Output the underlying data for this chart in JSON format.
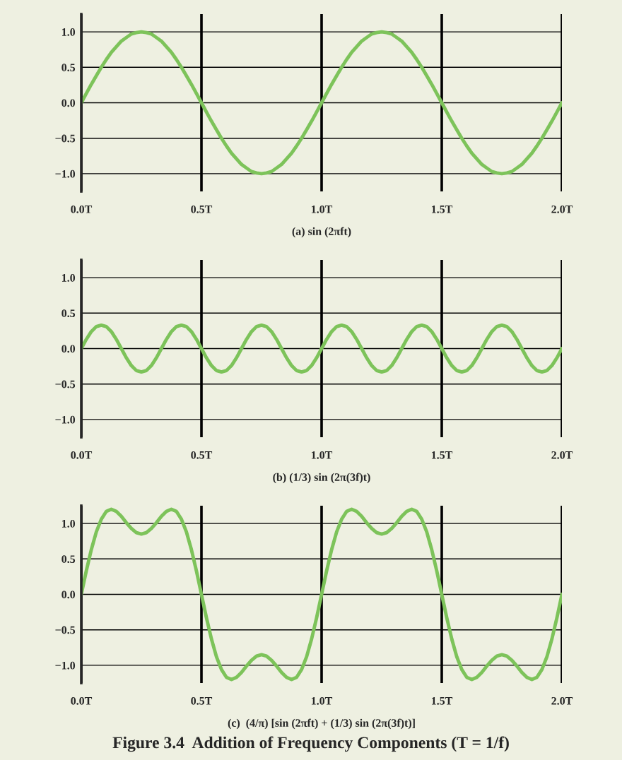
{
  "chart_data": [
    {
      "type": "line",
      "xlabel": "(a) sin (2πft)",
      "x": [
        0,
        0.0208,
        0.0417,
        0.0625,
        0.0833,
        0.1042,
        0.125,
        0.1458,
        0.1667,
        0.1875,
        0.2083,
        0.2292,
        0.25,
        0.2708,
        0.2917,
        0.3125,
        0.3333,
        0.3542,
        0.375,
        0.3958,
        0.4167,
        0.4375,
        0.4583,
        0.4792,
        0.5,
        0.5208,
        0.5417,
        0.5625,
        0.5833,
        0.6042,
        0.625,
        0.6458,
        0.6667,
        0.6875,
        0.7083,
        0.7292,
        0.75,
        0.7708,
        0.7917,
        0.8125,
        0.8333,
        0.8542,
        0.875,
        0.8958,
        0.9167,
        0.9375,
        0.9583,
        0.9792,
        1,
        1.0208,
        1.0417,
        1.0625,
        1.0833,
        1.1042,
        1.125,
        1.1458,
        1.1667,
        1.1875,
        1.2083,
        1.2292,
        1.25,
        1.2708,
        1.2917,
        1.3125,
        1.3333,
        1.3542,
        1.375,
        1.3958,
        1.4167,
        1.4375,
        1.4583,
        1.4792,
        1.5,
        1.5208,
        1.5417,
        1.5625,
        1.5833,
        1.6042,
        1.625,
        1.6458,
        1.6667,
        1.6875,
        1.7083,
        1.7292,
        1.75,
        1.7708,
        1.7917,
        1.8125,
        1.8333,
        1.8542,
        1.875,
        1.8958,
        1.9167,
        1.9375,
        1.9583,
        1.9792,
        2
      ],
      "series": [
        {
          "color": "#7dc35a",
          "values": [
            0,
            0.13,
            0.26,
            0.38,
            0.5,
            0.61,
            0.71,
            0.79,
            0.87,
            0.92,
            0.97,
            0.99,
            1,
            0.99,
            0.97,
            0.92,
            0.87,
            0.79,
            0.71,
            0.61,
            0.5,
            0.38,
            0.26,
            0.13,
            0,
            -0.13,
            -0.26,
            -0.38,
            -0.5,
            -0.61,
            -0.71,
            -0.79,
            -0.87,
            -0.92,
            -0.97,
            -0.99,
            -1,
            -0.99,
            -0.97,
            -0.92,
            -0.87,
            -0.79,
            -0.71,
            -0.61,
            -0.5,
            -0.38,
            -0.26,
            -0.13,
            0,
            0.13,
            0.26,
            0.38,
            0.5,
            0.61,
            0.71,
            0.79,
            0.87,
            0.92,
            0.97,
            0.99,
            1,
            0.99,
            0.97,
            0.92,
            0.87,
            0.79,
            0.71,
            0.61,
            0.5,
            0.38,
            0.26,
            0.13,
            0,
            -0.13,
            -0.26,
            -0.38,
            -0.5,
            -0.61,
            -0.71,
            -0.79,
            -0.87,
            -0.92,
            -0.97,
            -0.99,
            -1,
            -0.99,
            -0.97,
            -0.92,
            -0.87,
            -0.79,
            -0.71,
            -0.61,
            -0.5,
            -0.38,
            -0.26,
            -0.13,
            0
          ]
        }
      ],
      "xlim": [
        0,
        2
      ],
      "ylim": [
        -1.25,
        1.25
      ],
      "xticks": [
        {
          "value": 0,
          "label": "0.0T"
        },
        {
          "value": 0.5,
          "label": "0.5T"
        },
        {
          "value": 1,
          "label": "1.0T"
        },
        {
          "value": 1.5,
          "label": "1.5T"
        },
        {
          "value": 2,
          "label": "2.0T"
        }
      ],
      "yticks": [
        {
          "value": 1,
          "label": "1.0"
        },
        {
          "value": 0.5,
          "label": "0.5"
        },
        {
          "value": 0,
          "label": "0.0"
        },
        {
          "value": -0.5,
          "label": "−0.5"
        },
        {
          "value": -1,
          "label": "−1.0"
        }
      ],
      "grid": true
    },
    {
      "type": "line",
      "xlabel": "(b) (1/3) sin (2π(3f)t)",
      "x": [
        0,
        0.0208,
        0.0417,
        0.0625,
        0.0833,
        0.1042,
        0.125,
        0.1458,
        0.1667,
        0.1875,
        0.2083,
        0.2292,
        0.25,
        0.2708,
        0.2917,
        0.3125,
        0.3333,
        0.3542,
        0.375,
        0.3958,
        0.4167,
        0.4375,
        0.4583,
        0.4792,
        0.5,
        0.5208,
        0.5417,
        0.5625,
        0.5833,
        0.6042,
        0.625,
        0.6458,
        0.6667,
        0.6875,
        0.7083,
        0.7292,
        0.75,
        0.7708,
        0.7917,
        0.8125,
        0.8333,
        0.8542,
        0.875,
        0.8958,
        0.9167,
        0.9375,
        0.9583,
        0.9792,
        1,
        1.0208,
        1.0417,
        1.0625,
        1.0833,
        1.1042,
        1.125,
        1.1458,
        1.1667,
        1.1875,
        1.2083,
        1.2292,
        1.25,
        1.2708,
        1.2917,
        1.3125,
        1.3333,
        1.3542,
        1.375,
        1.3958,
        1.4167,
        1.4375,
        1.4583,
        1.4792,
        1.5,
        1.5208,
        1.5417,
        1.5625,
        1.5833,
        1.6042,
        1.625,
        1.6458,
        1.6667,
        1.6875,
        1.7083,
        1.7292,
        1.75,
        1.7708,
        1.7917,
        1.8125,
        1.8333,
        1.8542,
        1.875,
        1.8958,
        1.9167,
        1.9375,
        1.9583,
        1.9792,
        2
      ],
      "series": [
        {
          "color": "#7dc35a",
          "values": [
            0,
            0.13,
            0.24,
            0.31,
            0.33,
            0.31,
            0.24,
            0.13,
            0,
            -0.13,
            -0.24,
            -0.31,
            -0.33,
            -0.31,
            -0.24,
            -0.13,
            0,
            0.13,
            0.24,
            0.31,
            0.33,
            0.31,
            0.24,
            0.13,
            0,
            -0.13,
            -0.24,
            -0.31,
            -0.33,
            -0.31,
            -0.24,
            -0.13,
            0,
            0.13,
            0.24,
            0.31,
            0.33,
            0.31,
            0.24,
            0.13,
            0,
            -0.13,
            -0.24,
            -0.31,
            -0.33,
            -0.31,
            -0.24,
            -0.13,
            0,
            0.13,
            0.24,
            0.31,
            0.33,
            0.31,
            0.24,
            0.13,
            0,
            -0.13,
            -0.24,
            -0.31,
            -0.33,
            -0.31,
            -0.24,
            -0.13,
            0,
            0.13,
            0.24,
            0.31,
            0.33,
            0.31,
            0.24,
            0.13,
            0,
            -0.13,
            -0.24,
            -0.31,
            -0.33,
            -0.31,
            -0.24,
            -0.13,
            0,
            0.13,
            0.24,
            0.31,
            0.33,
            0.31,
            0.24,
            0.13,
            0,
            -0.13,
            -0.24,
            -0.31,
            -0.33,
            -0.31,
            -0.24,
            -0.13,
            0
          ]
        }
      ],
      "xlim": [
        0,
        2
      ],
      "ylim": [
        -1.25,
        1.25
      ],
      "xticks": [
        {
          "value": 0,
          "label": "0.0T"
        },
        {
          "value": 0.5,
          "label": "0.5T"
        },
        {
          "value": 1,
          "label": "1.0T"
        },
        {
          "value": 1.5,
          "label": "1.5T"
        },
        {
          "value": 2,
          "label": "2.0T"
        }
      ],
      "yticks": [
        {
          "value": 1,
          "label": "1.0"
        },
        {
          "value": 0.5,
          "label": "0.5"
        },
        {
          "value": 0,
          "label": "0.0"
        },
        {
          "value": -0.5,
          "label": "−0.5"
        },
        {
          "value": -1,
          "label": "−1.0"
        }
      ],
      "grid": true
    },
    {
      "type": "line",
      "xlabel": "(c)  (4/π) [sin (2πft) + (1/3) sin (2π(3f)t)]",
      "annotations": [
        "Figure 3.4  Addition of Frequency Components (T = 1/f)"
      ],
      "x": [
        0,
        0.0208,
        0.0417,
        0.0625,
        0.0833,
        0.1042,
        0.125,
        0.1458,
        0.1667,
        0.1875,
        0.2083,
        0.2292,
        0.25,
        0.2708,
        0.2917,
        0.3125,
        0.3333,
        0.3542,
        0.375,
        0.3958,
        0.4167,
        0.4375,
        0.4583,
        0.4792,
        0.5,
        0.5208,
        0.5417,
        0.5625,
        0.5833,
        0.6042,
        0.625,
        0.6458,
        0.6667,
        0.6875,
        0.7083,
        0.7292,
        0.75,
        0.7708,
        0.7917,
        0.8125,
        0.8333,
        0.8542,
        0.875,
        0.8958,
        0.9167,
        0.9375,
        0.9583,
        0.9792,
        1,
        1.0208,
        1.0417,
        1.0625,
        1.0833,
        1.1042,
        1.125,
        1.1458,
        1.1667,
        1.1875,
        1.2083,
        1.2292,
        1.25,
        1.2708,
        1.2917,
        1.3125,
        1.3333,
        1.3542,
        1.375,
        1.3958,
        1.4167,
        1.4375,
        1.4583,
        1.4792,
        1.5,
        1.5208,
        1.5417,
        1.5625,
        1.5833,
        1.6042,
        1.625,
        1.6458,
        1.6667,
        1.6875,
        1.7083,
        1.7292,
        1.75,
        1.7708,
        1.7917,
        1.8125,
        1.8333,
        1.8542,
        1.875,
        1.8958,
        1.9167,
        1.9375,
        1.9583,
        1.9792,
        2
      ],
      "series": [
        {
          "color": "#7dc35a",
          "values": [
            0,
            0.33,
            0.63,
            0.88,
            1.06,
            1.17,
            1.2,
            1.17,
            1.1,
            1.01,
            0.93,
            0.87,
            0.85,
            0.87,
            0.93,
            1.01,
            1.1,
            1.17,
            1.2,
            1.17,
            1.06,
            0.88,
            0.63,
            0.33,
            0,
            -0.33,
            -0.63,
            -0.88,
            -1.06,
            -1.17,
            -1.2,
            -1.17,
            -1.1,
            -1.01,
            -0.93,
            -0.87,
            -0.85,
            -0.87,
            -0.93,
            -1.01,
            -1.1,
            -1.17,
            -1.2,
            -1.17,
            -1.06,
            -0.88,
            -0.63,
            -0.33,
            0,
            0.33,
            0.63,
            0.88,
            1.06,
            1.17,
            1.2,
            1.17,
            1.1,
            1.01,
            0.93,
            0.87,
            0.85,
            0.87,
            0.93,
            1.01,
            1.1,
            1.17,
            1.2,
            1.17,
            1.06,
            0.88,
            0.63,
            0.33,
            0,
            -0.33,
            -0.63,
            -0.88,
            -1.06,
            -1.17,
            -1.2,
            -1.17,
            -1.1,
            -1.01,
            -0.93,
            -0.87,
            -0.85,
            -0.87,
            -0.93,
            -1.01,
            -1.1,
            -1.17,
            -1.2,
            -1.17,
            -1.06,
            -0.88,
            -0.63,
            -0.33,
            0
          ]
        }
      ],
      "xlim": [
        0,
        2
      ],
      "ylim": [
        -1.25,
        1.25
      ],
      "xticks": [
        {
          "value": 0,
          "label": "0.0T"
        },
        {
          "value": 0.5,
          "label": "0.5T"
        },
        {
          "value": 1,
          "label": "1.0T"
        },
        {
          "value": 1.5,
          "label": "1.5T"
        },
        {
          "value": 2,
          "label": "2.0T"
        }
      ],
      "yticks": [
        {
          "value": 1,
          "label": "1.0"
        },
        {
          "value": 0.5,
          "label": "0.5"
        },
        {
          "value": 0,
          "label": "0.0"
        },
        {
          "value": -0.5,
          "label": "−0.5"
        },
        {
          "value": -1,
          "label": "−1.0"
        }
      ],
      "grid": true
    }
  ]
}
